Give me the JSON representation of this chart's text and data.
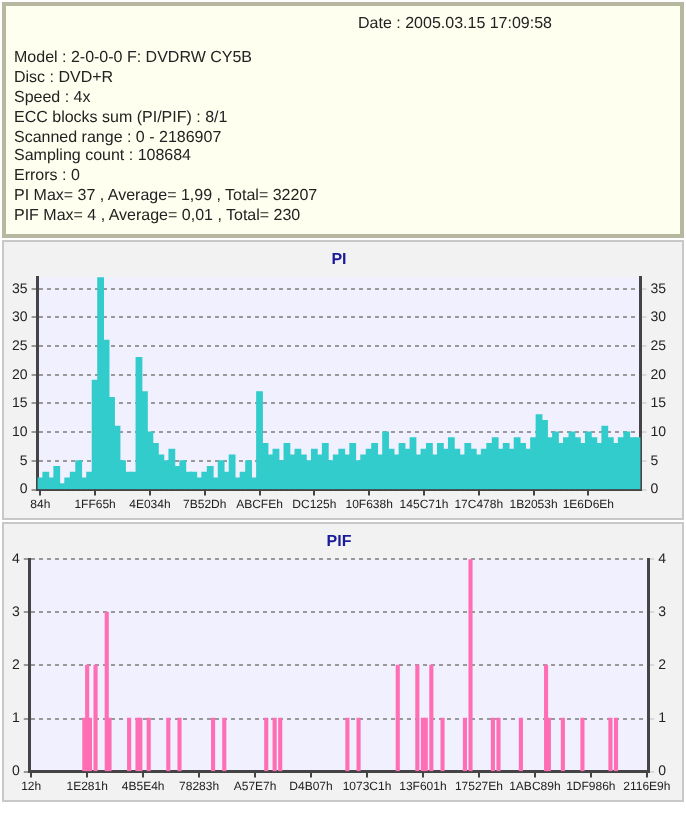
{
  "chart_data": [
    {
      "type": "other",
      "annotations": [
        "Date : 2005.03.15 17:09:58",
        "Model : 2-0-0-0 F: DVDRW CY5B",
        "Disc : DVD+R",
        "Speed : 4x",
        "ECC blocks sum (PI/PIF) : 8/1",
        "Scanned range : 0 - 2186907",
        "Sampling count : 108684",
        "Errors : 0",
        "PI Max= 37 , Average= 1,99 , Total= 32207",
        "PIF Max= 4 , Average= 0,01 , Total= 230"
      ]
    },
    {
      "type": "bar",
      "title": "PI",
      "color": "#33cccc",
      "grid": "y",
      "legend": false,
      "categories": [
        "84h",
        null,
        null,
        null,
        null,
        null,
        null,
        null,
        null,
        null,
        "1FF65h",
        null,
        null,
        null,
        null,
        null,
        null,
        null,
        null,
        null,
        "4E034h",
        null,
        null,
        null,
        null,
        null,
        null,
        null,
        null,
        null,
        "7B52Dh",
        null,
        null,
        null,
        null,
        null,
        null,
        null,
        null,
        null,
        "ABCFEh",
        null,
        null,
        null,
        null,
        null,
        null,
        null,
        null,
        null,
        "DC125h",
        null,
        null,
        null,
        null,
        null,
        null,
        null,
        null,
        null,
        "10F638h",
        null,
        null,
        null,
        null,
        null,
        null,
        null,
        null,
        null,
        "145C71h",
        null,
        null,
        null,
        null,
        null,
        null,
        null,
        null,
        null,
        "17C478h",
        null,
        null,
        null,
        null,
        null,
        null,
        null,
        null,
        null,
        "1B2053h",
        null,
        null,
        null,
        null,
        null,
        null,
        null,
        null,
        null,
        "1E6D6Eh",
        null,
        null,
        null,
        null,
        null,
        null,
        null,
        null,
        null
      ],
      "values": [
        2,
        3,
        2,
        4,
        1,
        2,
        3,
        5,
        2,
        3,
        19,
        37,
        26,
        16,
        11,
        5,
        3,
        3,
        23,
        17,
        10,
        8,
        6,
        5,
        7,
        4,
        5,
        3,
        3,
        2,
        3,
        4,
        2,
        5,
        3,
        6,
        2,
        3,
        5,
        2,
        17,
        8,
        6,
        7,
        5,
        8,
        6,
        7,
        6,
        5,
        7,
        6,
        8,
        5,
        6,
        7,
        6,
        8,
        5,
        6,
        7,
        8,
        6,
        10,
        7,
        6,
        8,
        7,
        9,
        6,
        7,
        8,
        6,
        8,
        7,
        9,
        7,
        6,
        8,
        7,
        6,
        7,
        8,
        9,
        7,
        8,
        7,
        9,
        8,
        7,
        9,
        13,
        12,
        9,
        10,
        8,
        9,
        10,
        9,
        8,
        10,
        9,
        8,
        11,
        9,
        8,
        9,
        10,
        9,
        9
      ],
      "ylim": [
        0,
        37
      ],
      "yticks": [
        0,
        5,
        10,
        15,
        20,
        25,
        30,
        35
      ],
      "y2lim": [
        0,
        37
      ],
      "y2ticks": [
        0,
        5,
        10,
        15,
        20,
        25,
        30,
        35
      ]
    },
    {
      "type": "bar",
      "title": "PIF",
      "color": "#ff6eb4",
      "grid": "y",
      "legend": false,
      "categories": [
        "12h",
        null,
        null,
        null,
        null,
        null,
        null,
        null,
        null,
        null,
        null,
        null,
        null,
        null,
        null,
        null,
        null,
        null,
        null,
        null,
        "1E281h",
        null,
        null,
        null,
        null,
        null,
        null,
        null,
        null,
        null,
        null,
        null,
        null,
        null,
        null,
        null,
        null,
        null,
        null,
        null,
        "4B5E4h",
        null,
        null,
        null,
        null,
        null,
        null,
        null,
        null,
        null,
        null,
        null,
        null,
        null,
        null,
        null,
        null,
        null,
        null,
        null,
        "78283h",
        null,
        null,
        null,
        null,
        null,
        null,
        null,
        null,
        null,
        null,
        null,
        null,
        null,
        null,
        null,
        null,
        null,
        null,
        null,
        "A57E7h",
        null,
        null,
        null,
        null,
        null,
        null,
        null,
        null,
        null,
        null,
        null,
        null,
        null,
        null,
        null,
        null,
        null,
        null,
        null,
        "D4B07h",
        null,
        null,
        null,
        null,
        null,
        null,
        null,
        null,
        null,
        null,
        null,
        null,
        null,
        null,
        null,
        null,
        null,
        null,
        null,
        "1073C1h",
        null,
        null,
        null,
        null,
        null,
        null,
        null,
        null,
        null,
        null,
        null,
        null,
        null,
        null,
        null,
        null,
        null,
        null,
        null,
        "13F601h",
        null,
        null,
        null,
        null,
        null,
        null,
        null,
        null,
        null,
        null,
        null,
        null,
        null,
        null,
        null,
        null,
        null,
        null,
        null,
        "17527Eh",
        null,
        null,
        null,
        null,
        null,
        null,
        null,
        null,
        null,
        null,
        null,
        null,
        null,
        null,
        null,
        null,
        null,
        null,
        null,
        "1ABC89h",
        null,
        null,
        null,
        null,
        null,
        null,
        null,
        null,
        null,
        null,
        null,
        null,
        null,
        null,
        null,
        null,
        null,
        null,
        null,
        "1DF986h",
        null,
        null,
        null,
        null,
        null,
        null,
        null,
        null,
        null,
        null,
        null,
        null,
        null,
        null,
        null,
        null,
        null,
        null,
        null,
        "2116E9h"
      ],
      "values": [
        null,
        null,
        null,
        null,
        null,
        null,
        null,
        null,
        null,
        null,
        null,
        null,
        null,
        null,
        null,
        null,
        null,
        null,
        null,
        1,
        2,
        1,
        null,
        2,
        null,
        null,
        null,
        3,
        1,
        null,
        null,
        null,
        null,
        null,
        null,
        1,
        null,
        null,
        1,
        1,
        null,
        null,
        1,
        null,
        null,
        null,
        null,
        null,
        null,
        1,
        null,
        null,
        null,
        1,
        null,
        null,
        null,
        null,
        null,
        null,
        null,
        null,
        null,
        null,
        null,
        1,
        null,
        null,
        null,
        1,
        null,
        null,
        null,
        null,
        null,
        null,
        null,
        null,
        null,
        null,
        null,
        null,
        null,
        null,
        1,
        null,
        null,
        1,
        null,
        1,
        null,
        null,
        null,
        null,
        null,
        null,
        null,
        null,
        null,
        null,
        null,
        null,
        null,
        null,
        null,
        null,
        null,
        null,
        null,
        null,
        null,
        null,
        null,
        1,
        null,
        null,
        null,
        1,
        null,
        null,
        null,
        null,
        null,
        null,
        null,
        null,
        null,
        null,
        null,
        null,
        null,
        2,
        null,
        null,
        null,
        null,
        null,
        null,
        2,
        null,
        1,
        1,
        null,
        2,
        null,
        null,
        null,
        1,
        null,
        null,
        null,
        null,
        null,
        null,
        null,
        1,
        null,
        4,
        null,
        null,
        null,
        null,
        null,
        null,
        null,
        1,
        null,
        1,
        null,
        null,
        null,
        null,
        null,
        null,
        null,
        1,
        null,
        null,
        null,
        null,
        null,
        null,
        null,
        null,
        2,
        1,
        null,
        null,
        null,
        null,
        1,
        null,
        null,
        null,
        null,
        null,
        null,
        1,
        null,
        null,
        null,
        null,
        null,
        null,
        null,
        null,
        null,
        1,
        null,
        1,
        null,
        null,
        null,
        null,
        null,
        null,
        null,
        null,
        null,
        null,
        null
      ],
      "ylim": [
        0,
        4
      ],
      "yticks": [
        0,
        1,
        2,
        3,
        4
      ],
      "y2lim": [
        0,
        4
      ],
      "y2ticks": [
        0,
        1,
        2,
        3,
        4
      ]
    }
  ]
}
